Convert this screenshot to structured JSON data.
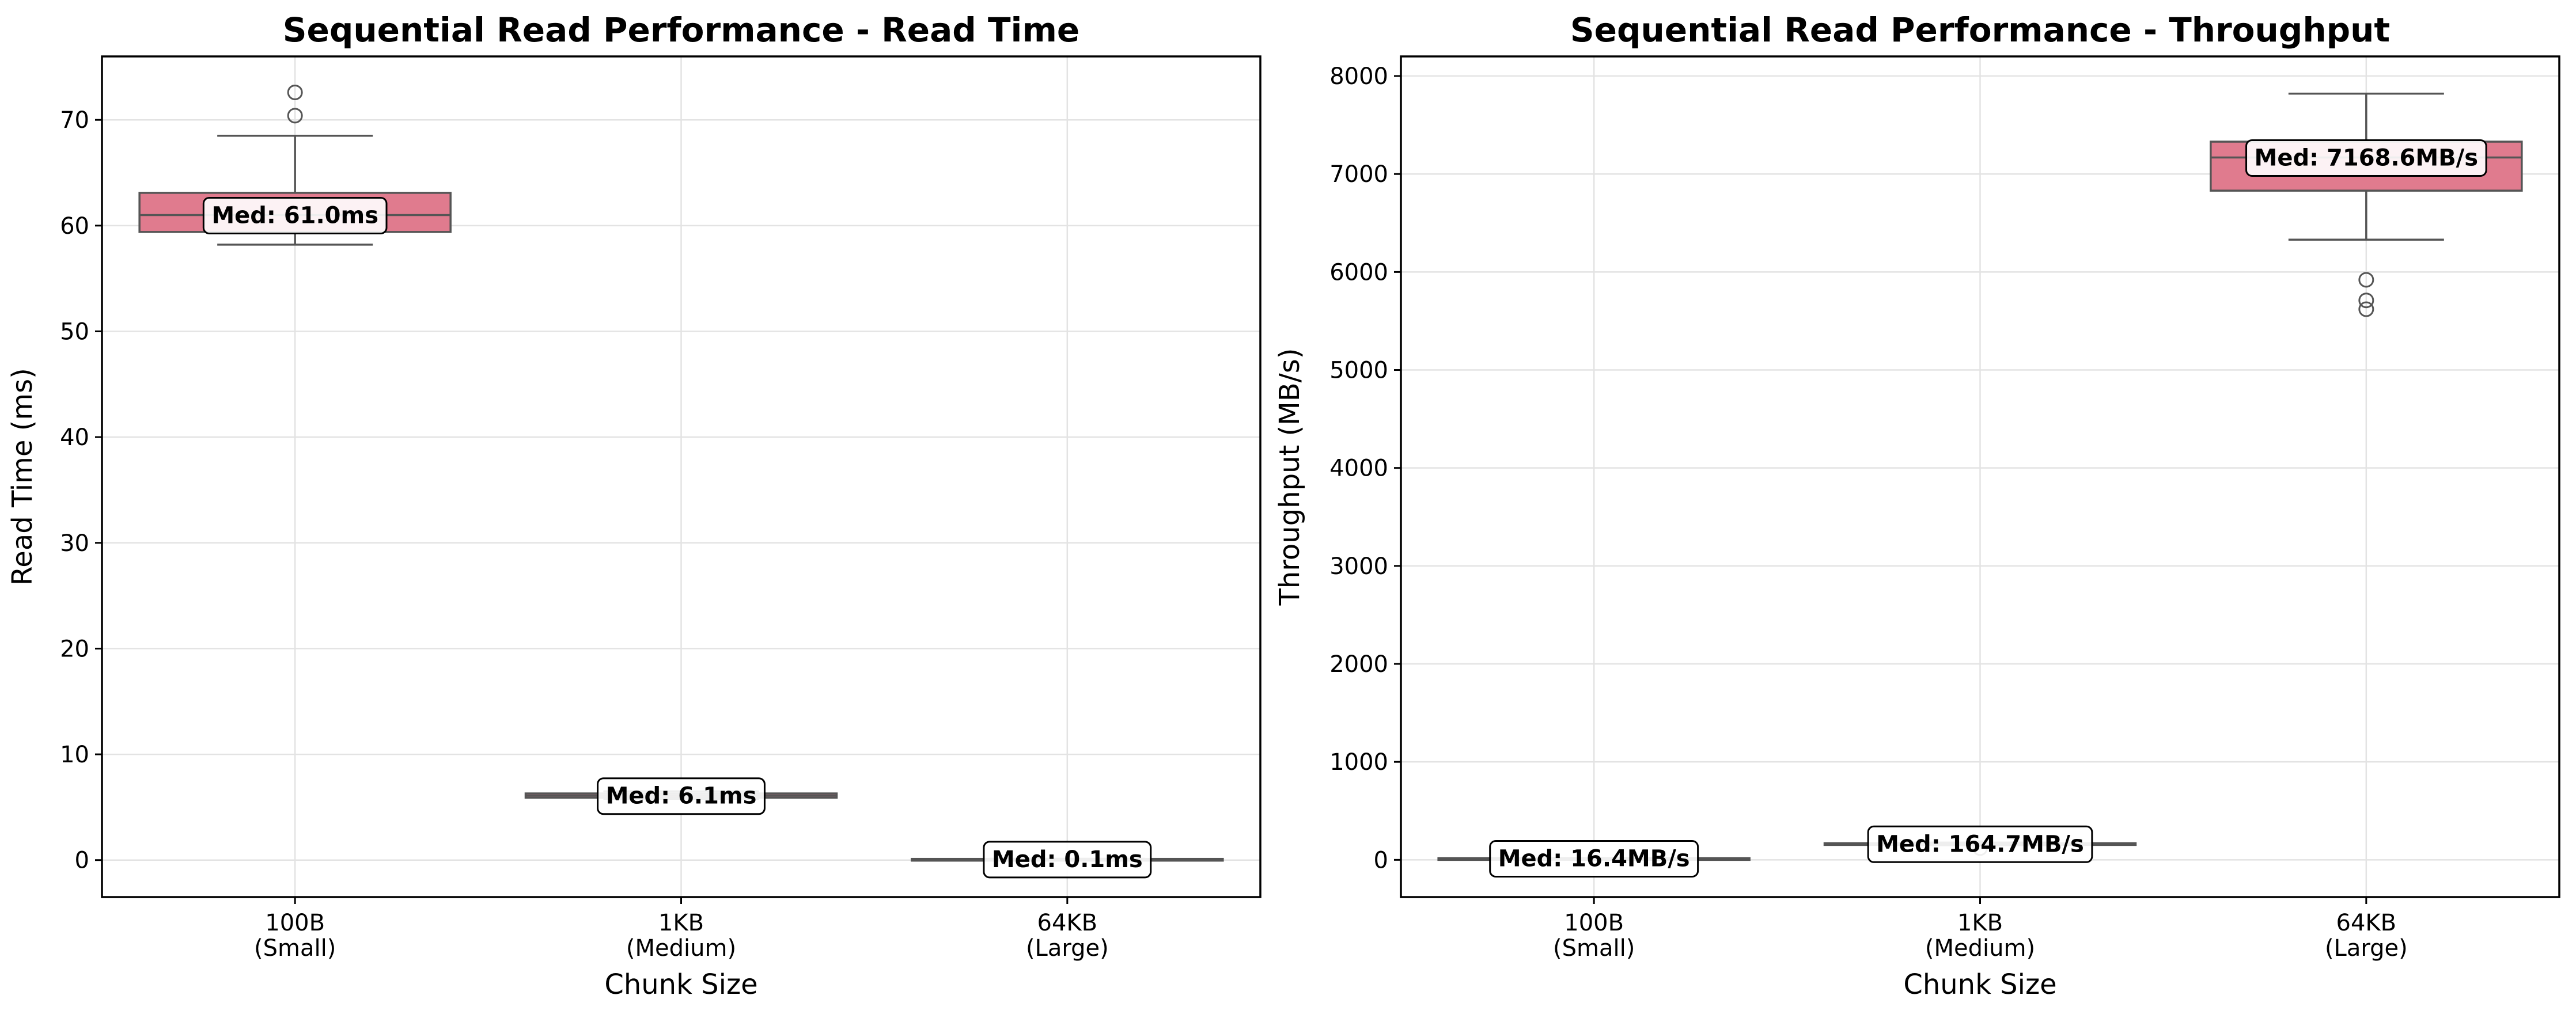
{
  "colors": {
    "box_fill": "#e07b8e",
    "line": "#555555",
    "grid": "#e3e3e3"
  },
  "chart_data": [
    {
      "type": "box",
      "title": "Sequential Read Performance - Read Time",
      "xlabel": "Chunk Size",
      "ylabel": "Read Time (ms)",
      "ylim": [
        -3.5,
        76
      ],
      "yticks": [
        0,
        10,
        20,
        30,
        40,
        50,
        60,
        70
      ],
      "grid": true,
      "categories": [
        {
          "line1": "100B",
          "line2": "(Small)"
        },
        {
          "line1": "1KB",
          "line2": "(Medium)"
        },
        {
          "line1": "64KB",
          "line2": "(Large)"
        }
      ],
      "boxes": [
        {
          "whislo": 58.2,
          "q1": 59.4,
          "med": 61.0,
          "q3": 63.1,
          "whishi": 68.5,
          "fliers": [
            70.4,
            72.6
          ],
          "label": "Med: 61.0ms",
          "label_y": 61.0
        },
        {
          "whislo": 5.8,
          "q1": 5.9,
          "med": 6.1,
          "q3": 6.3,
          "whishi": 6.5,
          "fliers": [],
          "label": "Med: 6.1ms",
          "label_y": 6.1
        },
        {
          "whislo": 0.08,
          "q1": 0.09,
          "med": 0.1,
          "q3": 0.11,
          "whishi": 0.12,
          "fliers": [],
          "label": "Med: 0.1ms",
          "label_y": 0.1
        }
      ]
    },
    {
      "type": "box",
      "title": "Sequential Read Performance - Throughput",
      "xlabel": "Chunk Size",
      "ylabel": "Throughput (MB/s)",
      "ylim": [
        -380,
        8200
      ],
      "yticks": [
        0,
        1000,
        2000,
        3000,
        4000,
        5000,
        6000,
        7000,
        8000
      ],
      "grid": true,
      "categories": [
        {
          "line1": "100B",
          "line2": "(Small)"
        },
        {
          "line1": "1KB",
          "line2": "(Medium)"
        },
        {
          "line1": "64KB",
          "line2": "(Large)"
        }
      ],
      "boxes": [
        {
          "whislo": 14.0,
          "q1": 15.5,
          "med": 16.4,
          "q3": 17.5,
          "whishi": 18.5,
          "fliers": [],
          "label": "Med: 16.4MB/s",
          "label_y": 16.4
        },
        {
          "whislo": 150,
          "q1": 158,
          "med": 164.7,
          "q3": 170,
          "whishi": 176,
          "fliers": [
            120
          ],
          "label": "Med: 164.7MB/s",
          "label_y": 164.7
        },
        {
          "whislo": 6330,
          "q1": 6830,
          "med": 7168.6,
          "q3": 7330,
          "whishi": 7820,
          "fliers": [
            5920,
            5710,
            5620
          ],
          "label": "Med: 7168.6MB/s",
          "label_y": 7168.6
        }
      ]
    }
  ]
}
